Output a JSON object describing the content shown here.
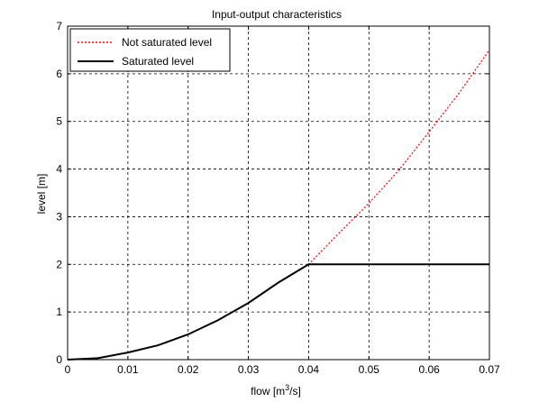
{
  "chart_data": {
    "type": "line",
    "title": "Input-output characteristics",
    "xlabel_main": "flow [m",
    "xlabel_sup": "3",
    "xlabel_tail": "/s]",
    "ylabel": "level [m]",
    "xlim": [
      0,
      0.07
    ],
    "ylim": [
      0,
      7
    ],
    "xticks": [
      0,
      0.01,
      0.02,
      0.03,
      0.04,
      0.05,
      0.06,
      0.07
    ],
    "xtick_labels": [
      "0",
      "0.01",
      "0.02",
      "0.03",
      "0.04",
      "0.05",
      "0.06",
      "0.07"
    ],
    "yticks": [
      0,
      1,
      2,
      3,
      4,
      5,
      6,
      7
    ],
    "ytick_labels": [
      "0",
      "1",
      "2",
      "3",
      "4",
      "5",
      "6",
      "7"
    ],
    "grid": true,
    "legend_position": "top-left",
    "series": [
      {
        "name": "Not saturated level",
        "color": "#ff0000",
        "style": "dotted",
        "x": [
          0,
          0.005,
          0.01,
          0.015,
          0.02,
          0.025,
          0.03,
          0.035,
          0.04,
          0.045,
          0.05,
          0.055,
          0.06,
          0.065,
          0.07
        ],
        "y": [
          0,
          0.03,
          0.15,
          0.3,
          0.53,
          0.83,
          1.19,
          1.62,
          2.0,
          2.65,
          3.28,
          3.98,
          4.78,
          5.6,
          6.5
        ]
      },
      {
        "name": "Saturated level",
        "color": "#000000",
        "style": "solid",
        "x": [
          0,
          0.005,
          0.01,
          0.015,
          0.02,
          0.025,
          0.03,
          0.035,
          0.04,
          0.045,
          0.05,
          0.055,
          0.06,
          0.065,
          0.07
        ],
        "y": [
          0,
          0.03,
          0.15,
          0.3,
          0.53,
          0.83,
          1.19,
          1.62,
          2.0,
          2.0,
          2.0,
          2.0,
          2.0,
          2.0,
          2.0
        ]
      }
    ]
  }
}
